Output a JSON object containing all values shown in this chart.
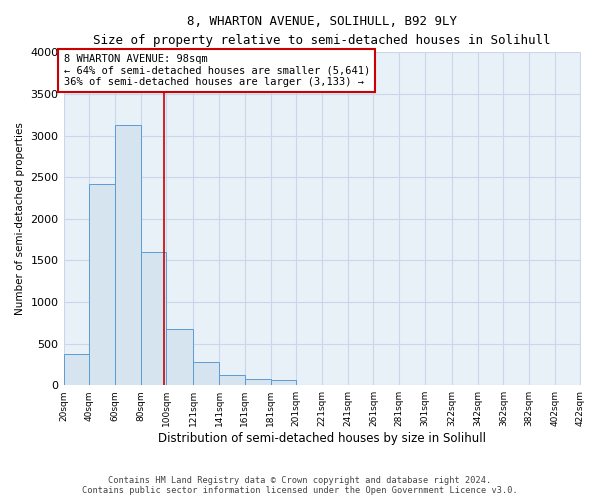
{
  "title": "8, WHARTON AVENUE, SOLIHULL, B92 9LY",
  "subtitle": "Size of property relative to semi-detached houses in Solihull",
  "xlabel": "Distribution of semi-detached houses by size in Solihull",
  "ylabel": "Number of semi-detached properties",
  "footer_line1": "Contains HM Land Registry data © Crown copyright and database right 2024.",
  "footer_line2": "Contains public sector information licensed under the Open Government Licence v3.0.",
  "annotation_title": "8 WHARTON AVENUE: 98sqm",
  "annotation_line1": "← 64% of semi-detached houses are smaller (5,641)",
  "annotation_line2": "36% of semi-detached houses are larger (3,133) →",
  "property_size": 98,
  "bar_color": "#d6e4f0",
  "bar_edge_color": "#5b9bd5",
  "vline_color": "#cc0000",
  "annotation_box_color": "#cc0000",
  "grid_color": "#c8d8e8",
  "background_color": "#e8f0f8",
  "bin_edges": [
    20,
    40,
    60,
    80,
    100,
    121,
    141,
    161,
    181,
    201,
    221,
    241,
    261,
    281,
    301,
    322,
    342,
    362,
    382,
    402,
    422
  ],
  "bin_labels": [
    "20sqm",
    "40sqm",
    "60sqm",
    "80sqm",
    "100sqm",
    "121sqm",
    "141sqm",
    "161sqm",
    "181sqm",
    "201sqm",
    "221sqm",
    "241sqm",
    "261sqm",
    "281sqm",
    "301sqm",
    "322sqm",
    "342sqm",
    "362sqm",
    "382sqm",
    "402sqm",
    "422sqm"
  ],
  "bar_heights": [
    380,
    2420,
    3130,
    1600,
    670,
    280,
    120,
    70,
    60,
    0,
    0,
    0,
    0,
    0,
    0,
    0,
    0,
    0,
    0,
    0
  ],
  "ylim": [
    0,
    4000
  ],
  "yticks": [
    0,
    500,
    1000,
    1500,
    2000,
    2500,
    3000,
    3500,
    4000
  ]
}
